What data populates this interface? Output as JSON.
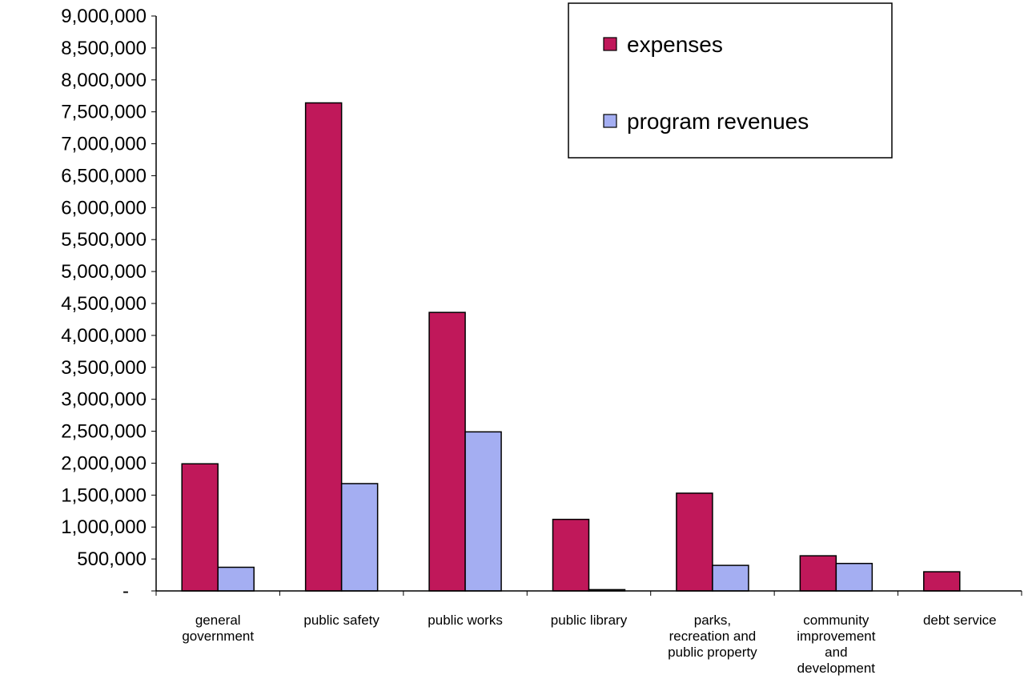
{
  "chart_data": {
    "type": "bar",
    "categories": [
      [
        "general",
        "government"
      ],
      [
        "public safety"
      ],
      [
        "public works"
      ],
      [
        "public library"
      ],
      [
        "parks,",
        "recreation and",
        "public property"
      ],
      [
        "community",
        "improvement",
        "and",
        "development"
      ],
      [
        "debt service"
      ]
    ],
    "series": [
      {
        "name": "expenses",
        "color": "#c0185a",
        "values": [
          1990000,
          7640000,
          4360000,
          1120000,
          1530000,
          550000,
          300000
        ]
      },
      {
        "name": "program revenues",
        "color": "#a4aef2",
        "values": [
          370000,
          1680000,
          2490000,
          20000,
          400000,
          430000,
          0
        ]
      }
    ],
    "ylim": [
      0,
      9000000
    ],
    "yticks": [
      {
        "value": 0,
        "label": "-"
      },
      {
        "value": 500000,
        "label": "500,000"
      },
      {
        "value": 1000000,
        "label": "1,000,000"
      },
      {
        "value": 1500000,
        "label": "1,500,000"
      },
      {
        "value": 2000000,
        "label": "2,000,000"
      },
      {
        "value": 2500000,
        "label": "2,500,000"
      },
      {
        "value": 3000000,
        "label": "3,000,000"
      },
      {
        "value": 3500000,
        "label": "3,500,000"
      },
      {
        "value": 4000000,
        "label": "4,000,000"
      },
      {
        "value": 4500000,
        "label": "4,500,000"
      },
      {
        "value": 5000000,
        "label": "5,000,000"
      },
      {
        "value": 5500000,
        "label": "5,500,000"
      },
      {
        "value": 6000000,
        "label": "6,000,000"
      },
      {
        "value": 6500000,
        "label": "6,500,000"
      },
      {
        "value": 7000000,
        "label": "7,000,000"
      },
      {
        "value": 7500000,
        "label": "7,500,000"
      },
      {
        "value": 8000000,
        "label": "8,000,000"
      },
      {
        "value": 8500000,
        "label": "8,500,000"
      },
      {
        "value": 9000000,
        "label": "9,000,000"
      }
    ],
    "legend_position": "top-right",
    "grid": false
  }
}
